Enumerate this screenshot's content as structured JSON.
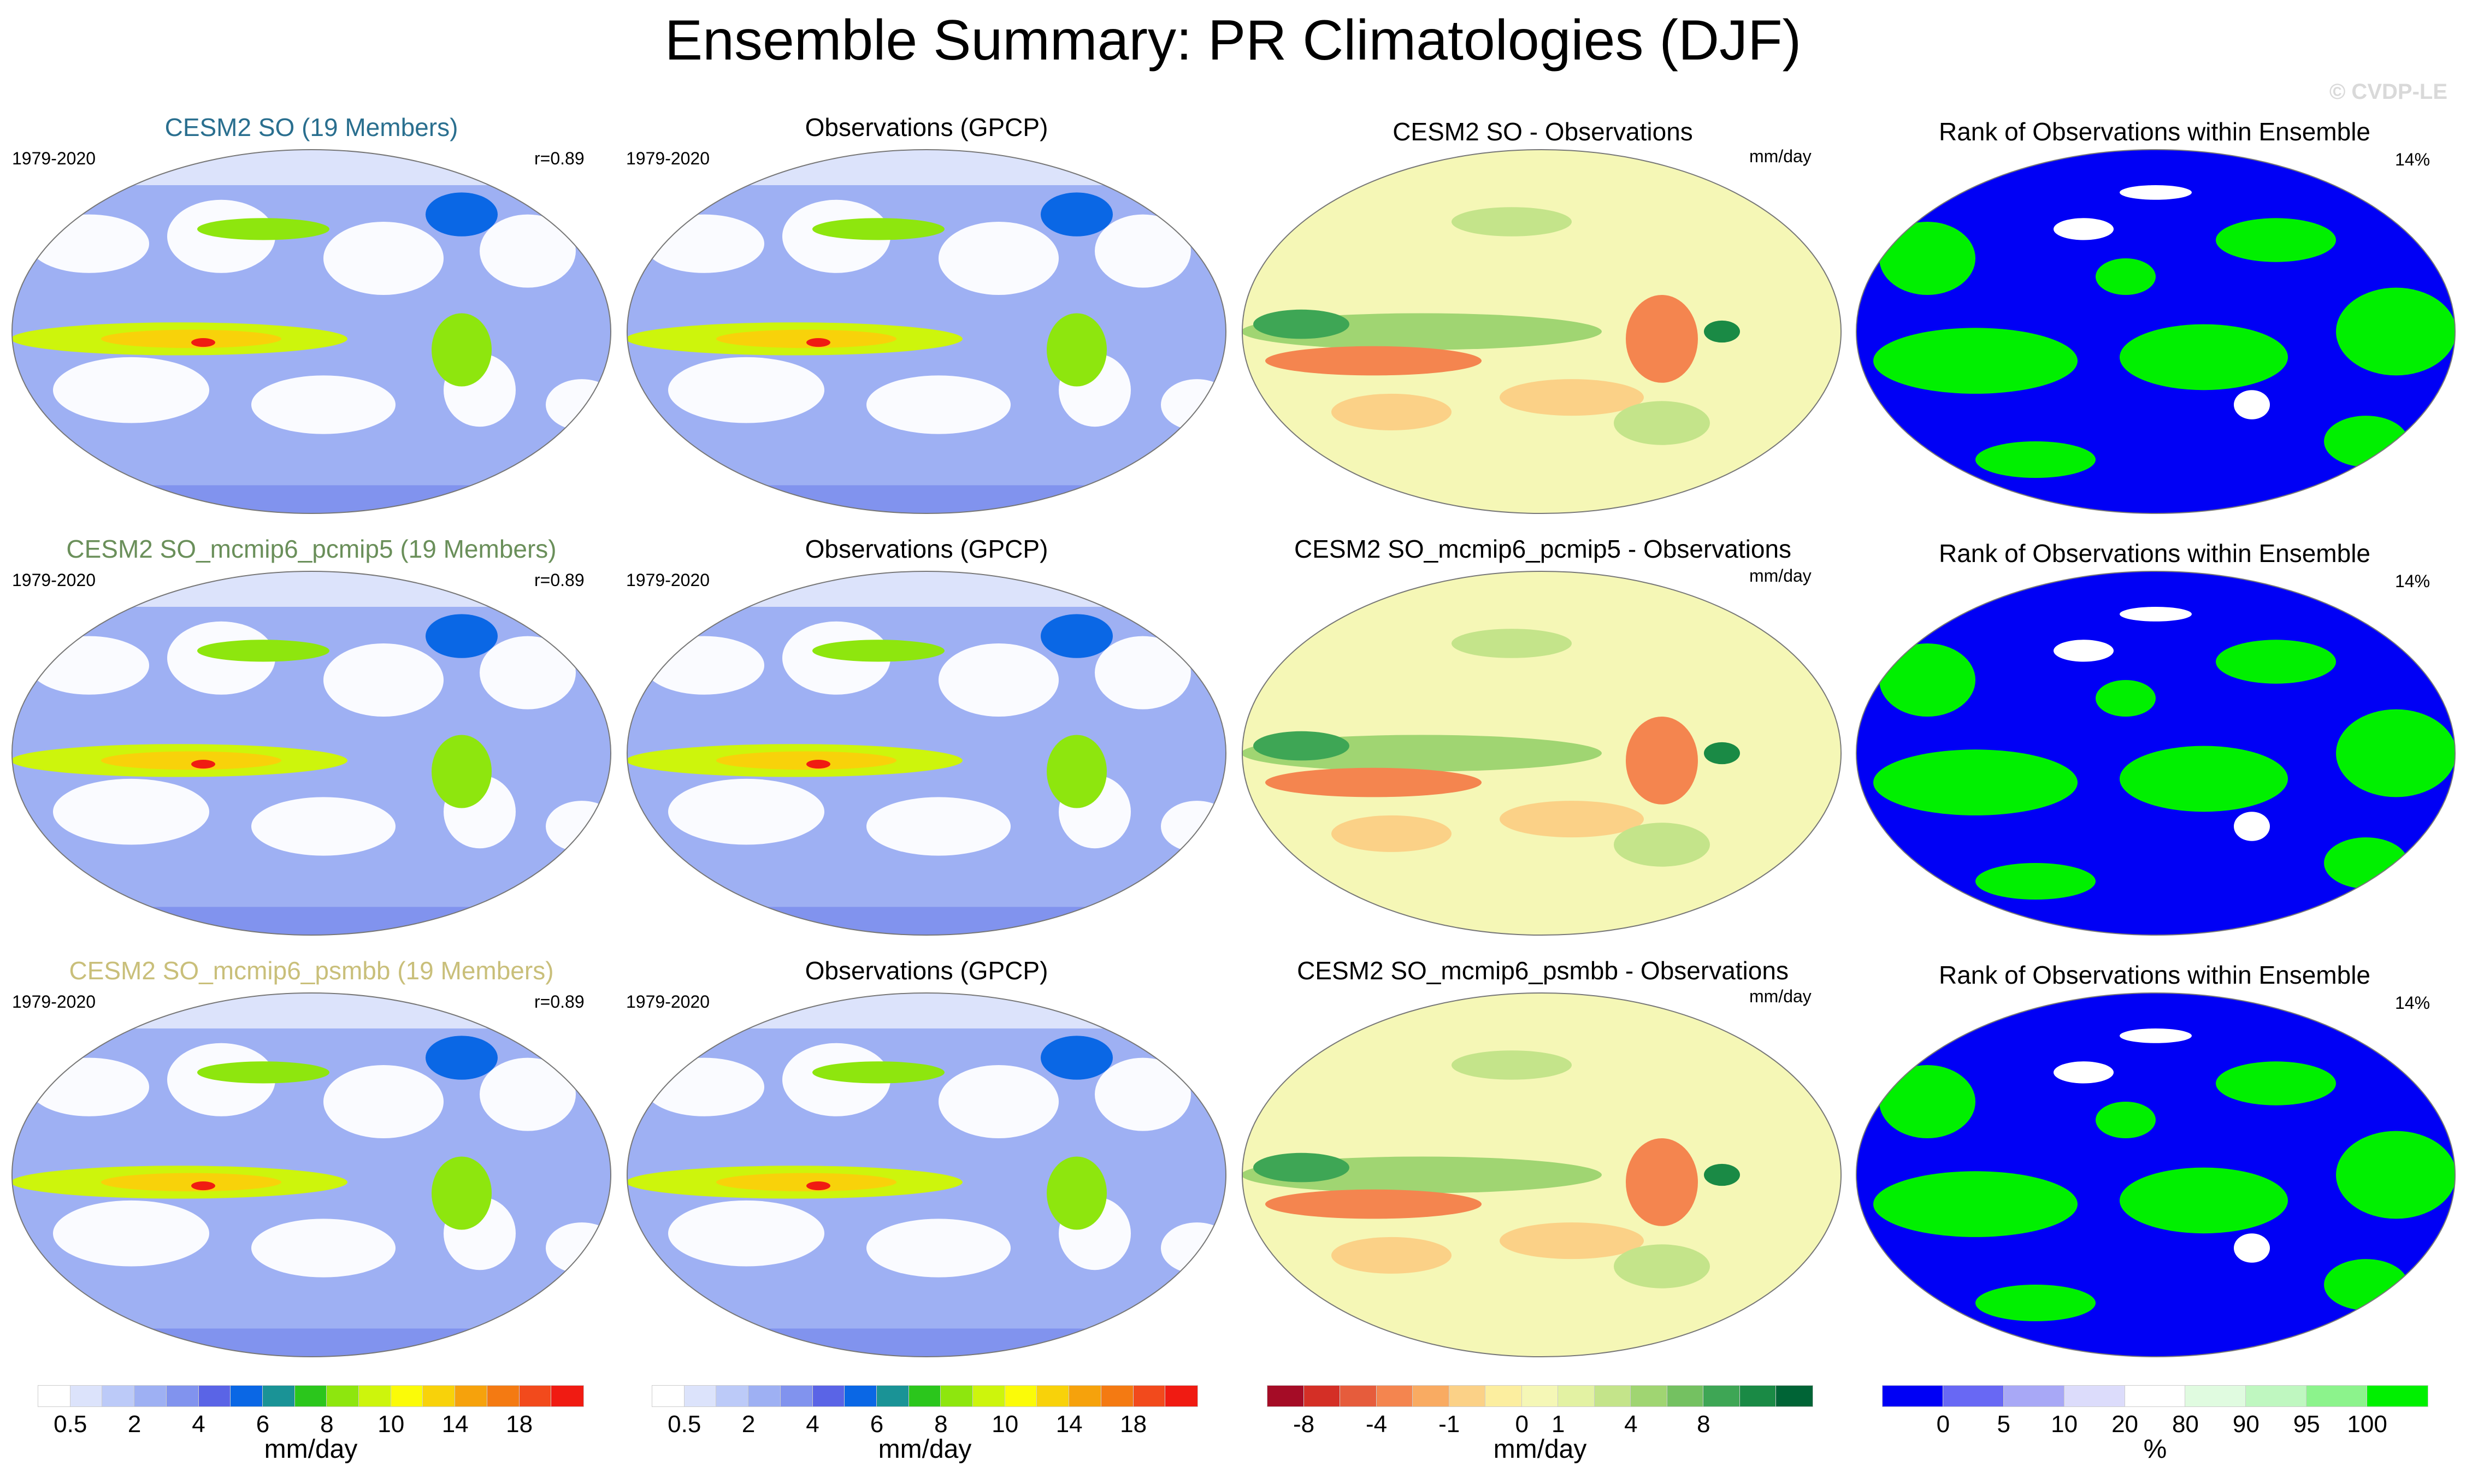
{
  "figure": {
    "title": "Ensemble Summary: PR Climatologies (DJF)",
    "watermark": "© CVDP-LE"
  },
  "rows": [
    {
      "ensemble_title": "CESM2 SO (19 Members)",
      "ensemble_title_color": "#2a6f8f",
      "period": "1979-2020",
      "pattern_corr": "r=0.89",
      "obs_title": "Observations (GPCP)",
      "obs_period": "1979-2020",
      "diff_title": "CESM2 SO - Observations",
      "diff_units": "mm/day",
      "rank_title": "Rank of Observations within Ensemble",
      "rank_pct": "14%"
    },
    {
      "ensemble_title": "CESM2 SO_mcmip6_pcmip5 (19 Members)",
      "ensemble_title_color": "#6a8f5a",
      "period": "1979-2020",
      "pattern_corr": "r=0.89",
      "obs_title": "Observations (GPCP)",
      "obs_period": "1979-2020",
      "diff_title": "CESM2 SO_mcmip6_pcmip5 - Observations",
      "diff_units": "mm/day",
      "rank_title": "Rank of Observations within Ensemble",
      "rank_pct": "14%"
    },
    {
      "ensemble_title": "CESM2 SO_mcmip6_psmbb (19 Members)",
      "ensemble_title_color": "#c9bf7a",
      "period": "1979-2020",
      "pattern_corr": "r=0.89",
      "obs_title": "Observations (GPCP)",
      "obs_period": "1979-2020",
      "diff_title": "CESM2 SO_mcmip6_psmbb - Observations",
      "diff_units": "mm/day",
      "rank_title": "Rank of Observations within Ensemble",
      "rank_pct": "14%"
    }
  ],
  "colorbars": {
    "precip": {
      "units": "mm/day",
      "labels": [
        "0.5",
        "2",
        "4",
        "6",
        "8",
        "10",
        "14",
        "18"
      ],
      "colors": [
        "#ffffff",
        "#dce3fb",
        "#bccaf8",
        "#9eb0f3",
        "#8193ee",
        "#5a64e6",
        "#0a67e5",
        "#1a9396",
        "#2bc61c",
        "#8ee60e",
        "#cdf50c",
        "#fbfb08",
        "#f8d20a",
        "#f6a20c",
        "#f47a12",
        "#f24a1c",
        "#f01b12"
      ]
    },
    "diff": {
      "units": "mm/day",
      "labels": [
        "-8",
        "-4",
        "-1",
        "0",
        "1",
        "4",
        "8"
      ],
      "colors": [
        "#a50c26",
        "#d42f26",
        "#e65c3c",
        "#f4854f",
        "#f9ab62",
        "#fbd187",
        "#fcee9f",
        "#f5f7b6",
        "#e3f2a3",
        "#c4e48a",
        "#a0d572",
        "#74c161",
        "#3ea655",
        "#1a8a45",
        "#006436"
      ]
    },
    "rank": {
      "units": "%",
      "labels": [
        "0",
        "5",
        "10",
        "20",
        "80",
        "90",
        "95",
        "100"
      ],
      "colors": [
        "#0000f5",
        "#6868f4",
        "#a8a8f6",
        "#dcdcfb",
        "#ffffff",
        "#e0fbe0",
        "#bff7c0",
        "#8cf38c",
        "#00f000"
      ]
    }
  }
}
